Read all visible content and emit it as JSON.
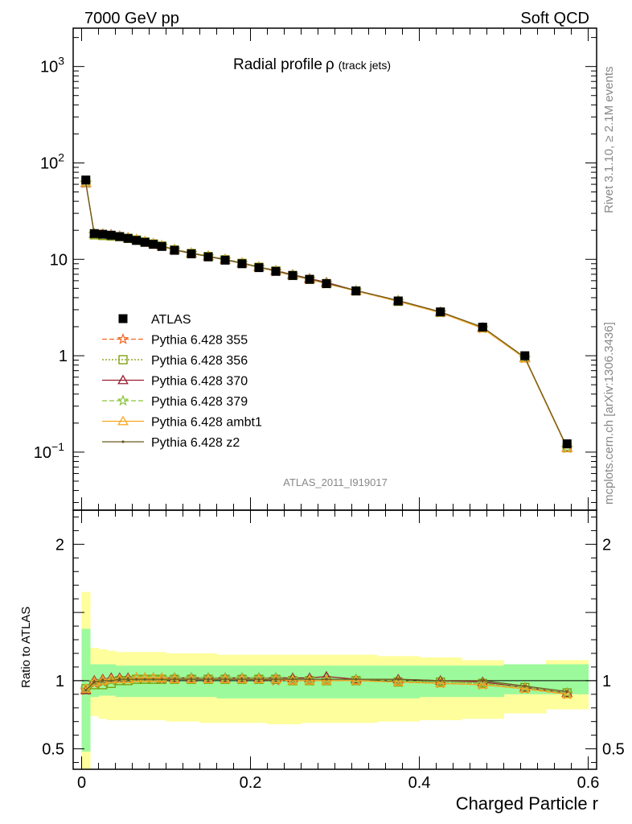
{
  "header": {
    "left": "7000 GeV pp",
    "right": "Soft QCD"
  },
  "side_text": {
    "top": "Rivet 3.1.10, ≥ 2.1M events",
    "bottom": "mcplots.cern.ch [arXiv:1306.3436]"
  },
  "chart_data": {
    "type": "line",
    "title": "Radial profile",
    "title_symbol": "ρ",
    "title_suffix": "(track jets)",
    "analysis_tag": "ATLAS_2011_I919017",
    "xlabel": "Charged Particle r",
    "ratio_ylabel": "Ratio to ATLAS",
    "xlim": [
      -0.01,
      0.61
    ],
    "ylim_main": [
      0.025,
      2500
    ],
    "yscale_main": "log",
    "ylim_ratio": [
      0.35,
      2.25
    ],
    "main_yticks": [
      {
        "v": 1000,
        "base": "10",
        "exp": "3"
      },
      {
        "v": 100,
        "base": "10",
        "exp": "2"
      },
      {
        "v": 10,
        "base": "10",
        "exp": ""
      },
      {
        "v": 1,
        "base": "1",
        "exp": ""
      },
      {
        "v": 0.1,
        "base": "10",
        "exp": "−1"
      }
    ],
    "ratio_yticks": [
      {
        "v": 2,
        "label": "2"
      },
      {
        "v": 1,
        "label": "1"
      },
      {
        "v": 0.5,
        "label": "0.5"
      }
    ],
    "xticks": [
      {
        "v": 0,
        "label": "0"
      },
      {
        "v": 0.2,
        "label": "0.2"
      },
      {
        "v": 0.4,
        "label": "0.4"
      },
      {
        "v": 0.6,
        "label": "0.6"
      }
    ],
    "x": [
      0.005,
      0.015,
      0.025,
      0.035,
      0.045,
      0.055,
      0.065,
      0.075,
      0.085,
      0.095,
      0.11,
      0.13,
      0.15,
      0.17,
      0.19,
      0.21,
      0.23,
      0.25,
      0.27,
      0.29,
      0.325,
      0.375,
      0.425,
      0.475,
      0.525,
      0.575
    ],
    "x_low": [
      0.0,
      0.01,
      0.02,
      0.03,
      0.04,
      0.05,
      0.06,
      0.07,
      0.08,
      0.09,
      0.1,
      0.12,
      0.14,
      0.16,
      0.18,
      0.2,
      0.22,
      0.24,
      0.26,
      0.28,
      0.3,
      0.35,
      0.4,
      0.45,
      0.5,
      0.55
    ],
    "x_high": [
      0.01,
      0.02,
      0.03,
      0.04,
      0.05,
      0.06,
      0.07,
      0.08,
      0.09,
      0.1,
      0.12,
      0.14,
      0.16,
      0.18,
      0.2,
      0.22,
      0.24,
      0.26,
      0.28,
      0.3,
      0.35,
      0.4,
      0.45,
      0.5,
      0.55,
      0.6
    ],
    "data": [
      66.5,
      18.5,
      18.2,
      17.8,
      17.2,
      16.5,
      15.7,
      15.0,
      14.3,
      13.6,
      12.4,
      11.4,
      10.6,
      9.8,
      9.0,
      8.2,
      7.5,
      6.8,
      6.2,
      5.6,
      4.7,
      3.7,
      2.85,
      1.98,
      1.0,
      0.122
    ],
    "band_inner": [
      [
        0.48,
        1.38
      ],
      [
        0.88,
        1.12
      ],
      [
        0.89,
        1.12
      ],
      [
        0.89,
        1.12
      ],
      [
        0.88,
        1.11
      ],
      [
        0.88,
        1.11
      ],
      [
        0.88,
        1.11
      ],
      [
        0.88,
        1.11
      ],
      [
        0.88,
        1.11
      ],
      [
        0.88,
        1.11
      ],
      [
        0.88,
        1.11
      ],
      [
        0.88,
        1.11
      ],
      [
        0.88,
        1.11
      ],
      [
        0.87,
        1.11
      ],
      [
        0.87,
        1.11
      ],
      [
        0.87,
        1.11
      ],
      [
        0.87,
        1.11
      ],
      [
        0.87,
        1.11
      ],
      [
        0.87,
        1.11
      ],
      [
        0.87,
        1.11
      ],
      [
        0.87,
        1.11
      ],
      [
        0.87,
        1.11
      ],
      [
        0.88,
        1.11
      ],
      [
        0.88,
        1.11
      ],
      [
        0.9,
        1.12
      ],
      [
        0.9,
        1.12
      ]
    ],
    "band_outer": [
      [
        0.35,
        1.65
      ],
      [
        0.74,
        1.24
      ],
      [
        0.72,
        1.23
      ],
      [
        0.71,
        1.22
      ],
      [
        0.71,
        1.21
      ],
      [
        0.71,
        1.21
      ],
      [
        0.71,
        1.21
      ],
      [
        0.71,
        1.21
      ],
      [
        0.71,
        1.21
      ],
      [
        0.71,
        1.21
      ],
      [
        0.7,
        1.2
      ],
      [
        0.7,
        1.2
      ],
      [
        0.69,
        1.2
      ],
      [
        0.69,
        1.19
      ],
      [
        0.69,
        1.19
      ],
      [
        0.69,
        1.19
      ],
      [
        0.68,
        1.19
      ],
      [
        0.68,
        1.19
      ],
      [
        0.69,
        1.19
      ],
      [
        0.69,
        1.19
      ],
      [
        0.69,
        1.19
      ],
      [
        0.7,
        1.18
      ],
      [
        0.71,
        1.17
      ],
      [
        0.72,
        1.15
      ],
      [
        0.76,
        1.12
      ],
      [
        0.79,
        1.15
      ]
    ],
    "series": [
      {
        "name": "Pythia 6.428 355",
        "color": "#f26522",
        "marker": "star",
        "dash": "6,3",
        "ratio": [
          0.93,
          0.98,
          0.99,
          1.0,
          1.01,
          1.01,
          1.02,
          1.02,
          1.02,
          1.01,
          1.01,
          1.01,
          1.01,
          1.01,
          1.01,
          1.01,
          1.0,
          1.0,
          1.0,
          1.0,
          1.0,
          0.99,
          0.98,
          0.97,
          0.94,
          0.9
        ]
      },
      {
        "name": "Pythia 6.428 356",
        "color": "#7a9a01",
        "marker": "square",
        "dash": "2,2",
        "ratio": [
          0.94,
          0.97,
          0.97,
          0.98,
          1.0,
          1.0,
          1.01,
          1.01,
          1.01,
          1.01,
          1.01,
          1.01,
          1.01,
          1.01,
          1.01,
          1.01,
          1.01,
          1.0,
          1.0,
          1.0,
          1.0,
          0.99,
          0.99,
          0.98,
          0.95,
          0.91
        ]
      },
      {
        "name": "Pythia 6.428 370",
        "color": "#9b1c31",
        "marker": "triangle",
        "dash": "",
        "ratio": [
          0.93,
          1.0,
          1.01,
          1.02,
          1.02,
          1.02,
          1.02,
          1.02,
          1.02,
          1.02,
          1.02,
          1.02,
          1.02,
          1.02,
          1.02,
          1.02,
          1.02,
          1.02,
          1.02,
          1.03,
          1.01,
          1.01,
          1.0,
          0.99,
          0.95,
          0.91
        ]
      },
      {
        "name": "Pythia 6.428 379",
        "color": "#8ac33f",
        "marker": "star",
        "dash": "6,3",
        "ratio": [
          0.94,
          0.99,
          1.0,
          1.0,
          1.01,
          1.01,
          1.02,
          1.02,
          1.02,
          1.02,
          1.02,
          1.02,
          1.02,
          1.02,
          1.02,
          1.02,
          1.02,
          1.01,
          1.01,
          1.01,
          1.01,
          1.0,
          0.99,
          0.98,
          0.95,
          0.91
        ]
      },
      {
        "name": "Pythia 6.428 ambt1",
        "color": "#f7a823",
        "marker": "triangle",
        "dash": "",
        "ratio": [
          0.94,
          0.99,
          1.0,
          1.01,
          1.01,
          1.01,
          1.02,
          1.02,
          1.02,
          1.02,
          1.01,
          1.01,
          1.01,
          1.01,
          1.01,
          1.01,
          1.01,
          1.0,
          1.0,
          1.0,
          1.0,
          0.99,
          0.98,
          0.97,
          0.94,
          0.9
        ]
      },
      {
        "name": "Pythia 6.428 z2",
        "color": "#6b5b1f",
        "marker": "dot",
        "dash": "",
        "ratio": [
          0.93,
          0.99,
          1.0,
          1.0,
          1.01,
          1.01,
          1.01,
          1.01,
          1.01,
          1.01,
          1.01,
          1.01,
          1.01,
          1.01,
          1.01,
          1.01,
          1.01,
          1.01,
          1.01,
          1.01,
          1.01,
          1.01,
          1.0,
          1.0,
          0.96,
          0.92
        ]
      }
    ],
    "legend": {
      "data_label": "ATLAS",
      "placement": "left"
    },
    "colors": {
      "band_inner": "#9cfa9c",
      "band_outer": "#fefe9c",
      "data": "#000000"
    }
  }
}
